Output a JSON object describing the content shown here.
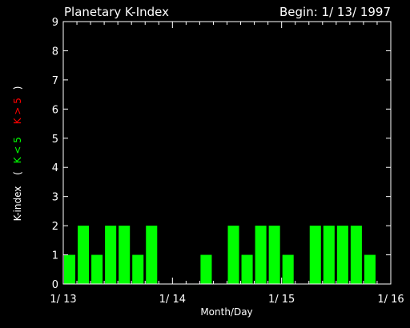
{
  "header": {
    "title": "Planetary K-Index",
    "begin": "Begin: 1/ 13/ 1997"
  },
  "ylabel_parts": {
    "prefix": "K-index",
    "open": "(",
    "green": "K < 5",
    "red": "K > 5",
    "close": ")"
  },
  "colors": {
    "background": "#000000",
    "axes": "#ffffff",
    "bar_low": "#00ff00",
    "bar_high": "#ff0000",
    "label_green": "#00ff00",
    "label_red": "#ff0000"
  },
  "chart_data": {
    "type": "bar",
    "title": "Planetary K-Index",
    "xlabel": "Month/Day",
    "ylabel": "K-index ( K < 5  K > 5 )",
    "ylim": [
      0,
      9
    ],
    "yticks": [
      "0",
      "1",
      "2",
      "3",
      "4",
      "5",
      "6",
      "7",
      "8",
      "9"
    ],
    "xlim_days": [
      0,
      3
    ],
    "xticks": [
      "1/ 13",
      "1/ 14",
      "1/ 15",
      "1/ 16"
    ],
    "interval_hours": 3,
    "start_date": "1997-01-13",
    "values": [
      1,
      2,
      1,
      2,
      2,
      1,
      2,
      0,
      0,
      0,
      1,
      0,
      2,
      1,
      2,
      2,
      1,
      0,
      2,
      2,
      2,
      2,
      1,
      0
    ],
    "grid": false,
    "legend": "none"
  }
}
